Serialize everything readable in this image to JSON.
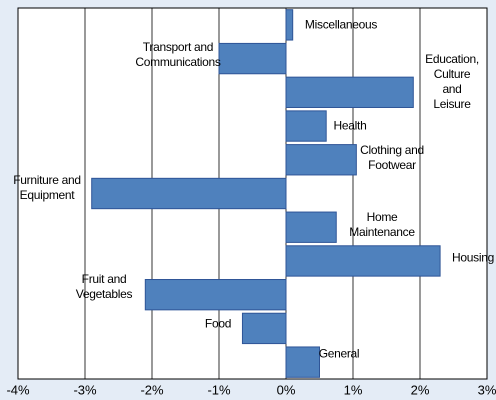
{
  "chart_data": {
    "type": "bar",
    "orientation": "horizontal",
    "categories": [
      "Miscellaneous",
      "Transport and\nCommunications",
      "Education,\nCulture and\nLeisure",
      "Health",
      "Clothing and\nFootwear",
      "Furniture and\nEquipment",
      "Home\nMaintenance",
      "Housing",
      "Fruit and\nVegetables",
      "Food",
      "General"
    ],
    "values": [
      0.1,
      -1.0,
      1.9,
      0.6,
      1.05,
      -2.9,
      0.75,
      2.3,
      -2.1,
      -0.65,
      0.5
    ],
    "color": "#4f81bd",
    "xlim": [
      -4,
      3
    ],
    "xticks": [
      {
        "value": -4,
        "label": "-4%"
      },
      {
        "value": -3,
        "label": "-3%"
      },
      {
        "value": -2,
        "label": "-2%"
      },
      {
        "value": -1,
        "label": "-1%"
      },
      {
        "value": 0,
        "label": "0%"
      },
      {
        "value": 1,
        "label": "1%"
      },
      {
        "value": 2,
        "label": "2%"
      },
      {
        "value": 3,
        "label": "3%"
      }
    ],
    "grid": true
  }
}
